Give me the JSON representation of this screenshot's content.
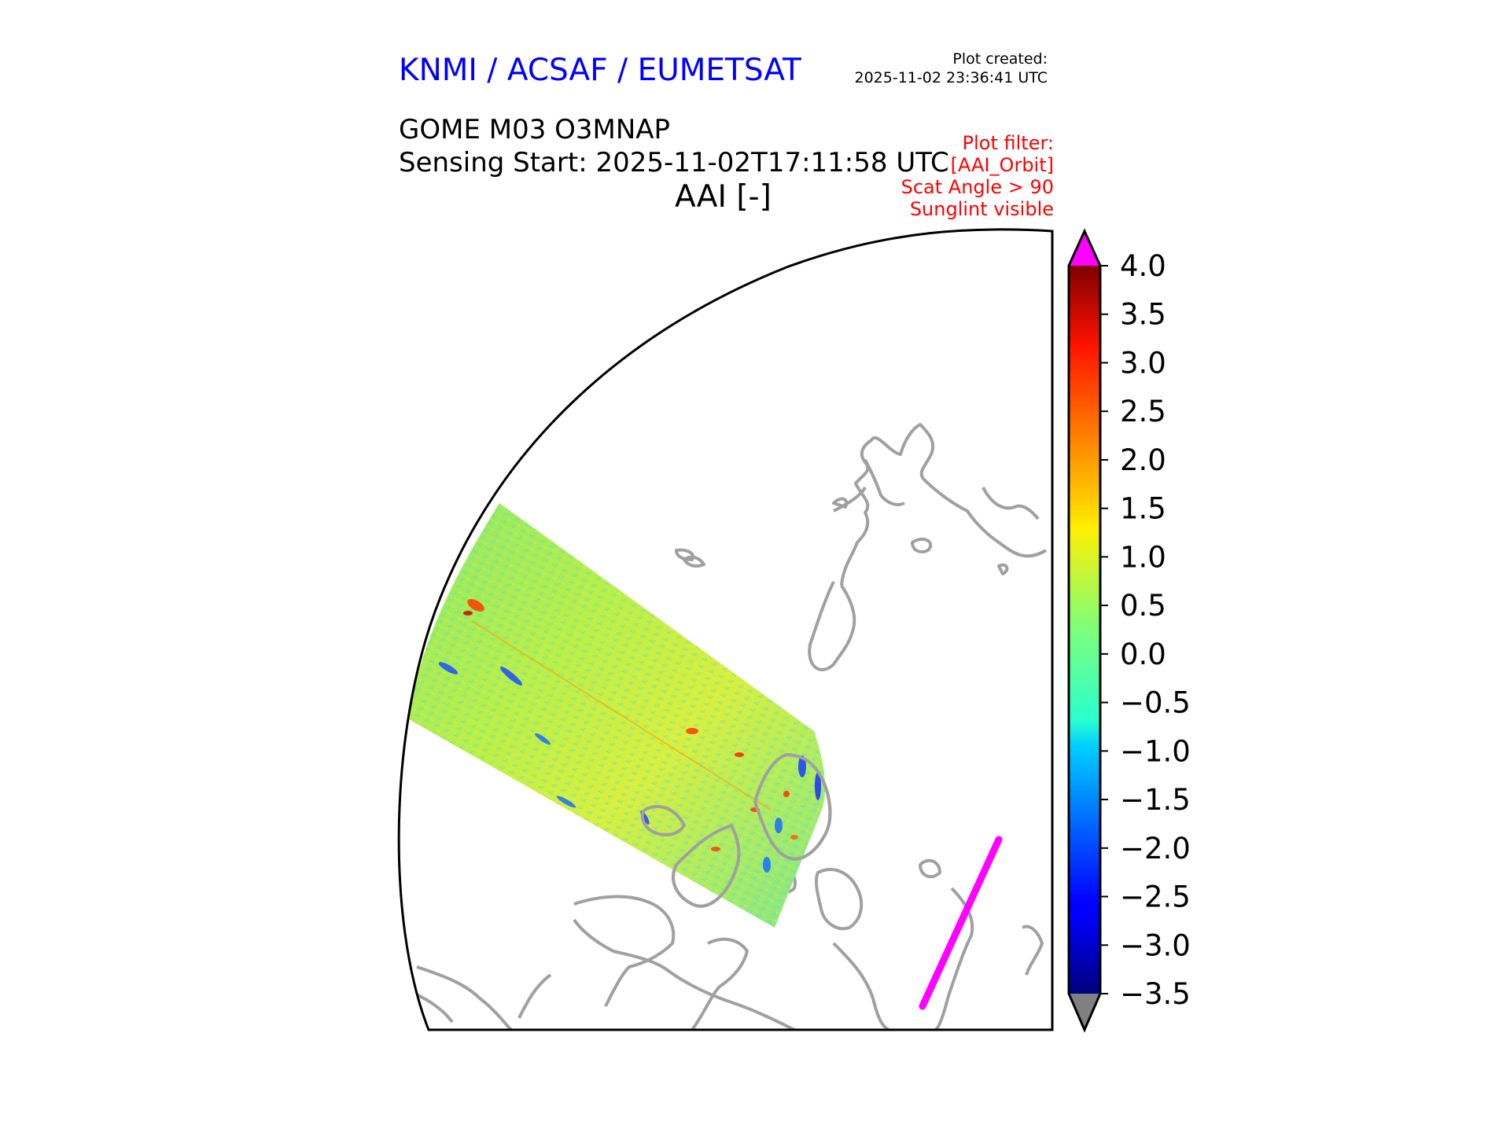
{
  "header": {
    "agency": "KNMI / ACSAF / EUMETSAT",
    "created_label": "Plot created:",
    "created_value": "2025-11-02 23:36:41 UTC",
    "product": "GOME M03 O3MNAP",
    "sensing": "Sensing Start: 2025-11-02T17:11:58 UTC",
    "variable": "AAI [-]"
  },
  "filter": {
    "lines": [
      "Plot filter:",
      "[AAI_Orbit]",
      "Scat Angle > 90",
      "Sunglint visible"
    ]
  },
  "colorbar": {
    "min": -3.5,
    "max": 4.0,
    "ticks": [
      "4.0",
      "3.5",
      "3.0",
      "2.5",
      "2.0",
      "1.5",
      "1.0",
      "0.5",
      "0.0",
      "−0.5",
      "−1.0",
      "−1.5",
      "−2.0",
      "−2.5",
      "−3.0",
      "−3.5"
    ],
    "over_color": "#ff00ff",
    "under_color": "#808080",
    "colormap": "jet"
  },
  "colors": {
    "coastline": "#a0a0a0",
    "frame": "#000000",
    "sunglint_track": "#ff00ff"
  }
}
